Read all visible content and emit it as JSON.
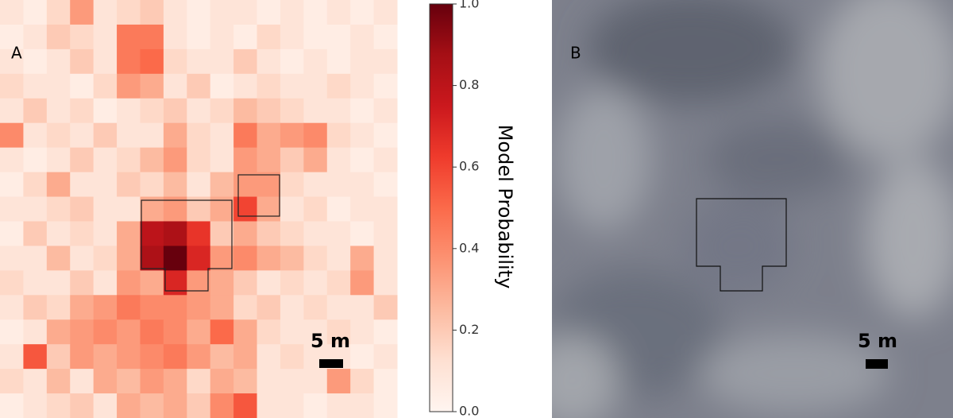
{
  "chart_data": {
    "type": "heatmap",
    "values": [
      [
        0.1,
        0.05,
        0.15,
        0.35,
        0.1,
        0.15,
        0.2,
        0.1,
        0.05,
        0.1,
        0.1,
        0.05,
        0.1,
        0.05,
        0.1,
        0.05,
        0.1
      ],
      [
        0.05,
        0.1,
        0.2,
        0.15,
        0.1,
        0.45,
        0.45,
        0.1,
        0.05,
        0.1,
        0.05,
        0.15,
        0.1,
        0.05,
        0.05,
        0.1,
        0.05
      ],
      [
        0.1,
        0.05,
        0.1,
        0.2,
        0.1,
        0.45,
        0.5,
        0.15,
        0.1,
        0.1,
        0.2,
        0.1,
        0.05,
        0.1,
        0.05,
        0.1,
        0.1
      ],
      [
        0.15,
        0.1,
        0.1,
        0.05,
        0.15,
        0.35,
        0.3,
        0.1,
        0.2,
        0.05,
        0.1,
        0.15,
        0.1,
        0.1,
        0.15,
        0.1,
        0.05
      ],
      [
        0.1,
        0.2,
        0.1,
        0.15,
        0.05,
        0.1,
        0.15,
        0.2,
        0.1,
        0.15,
        0.25,
        0.2,
        0.15,
        0.1,
        0.1,
        0.05,
        0.1
      ],
      [
        0.4,
        0.1,
        0.15,
        0.1,
        0.2,
        0.1,
        0.1,
        0.3,
        0.15,
        0.1,
        0.45,
        0.3,
        0.35,
        0.4,
        0.15,
        0.1,
        0.05
      ],
      [
        0.1,
        0.05,
        0.1,
        0.2,
        0.1,
        0.15,
        0.25,
        0.35,
        0.15,
        0.1,
        0.35,
        0.3,
        0.2,
        0.3,
        0.1,
        0.05,
        0.1
      ],
      [
        0.05,
        0.15,
        0.3,
        0.1,
        0.1,
        0.2,
        0.15,
        0.25,
        0.1,
        0.25,
        0.35,
        0.35,
        0.15,
        0.1,
        0.1,
        0.1,
        0.05
      ],
      [
        0.1,
        0.1,
        0.15,
        0.2,
        0.1,
        0.1,
        0.3,
        0.35,
        0.2,
        0.3,
        0.6,
        0.3,
        0.1,
        0.15,
        0.05,
        0.1,
        0.1
      ],
      [
        0.05,
        0.2,
        0.1,
        0.15,
        0.1,
        0.3,
        0.8,
        0.85,
        0.65,
        0.2,
        0.3,
        0.2,
        0.15,
        0.1,
        0.1,
        0.05,
        0.1
      ],
      [
        0.1,
        0.1,
        0.25,
        0.1,
        0.15,
        0.3,
        0.85,
        1.0,
        0.7,
        0.35,
        0.4,
        0.3,
        0.25,
        0.15,
        0.1,
        0.3,
        0.1
      ],
      [
        0.15,
        0.1,
        0.1,
        0.2,
        0.1,
        0.35,
        0.3,
        0.7,
        0.35,
        0.3,
        0.2,
        0.1,
        0.15,
        0.1,
        0.15,
        0.35,
        0.1
      ],
      [
        0.1,
        0.2,
        0.15,
        0.3,
        0.35,
        0.45,
        0.4,
        0.4,
        0.35,
        0.3,
        0.15,
        0.2,
        0.1,
        0.15,
        0.1,
        0.1,
        0.2
      ],
      [
        0.05,
        0.1,
        0.3,
        0.35,
        0.4,
        0.35,
        0.45,
        0.4,
        0.3,
        0.5,
        0.3,
        0.15,
        0.1,
        0.1,
        0.15,
        0.1,
        0.05
      ],
      [
        0.1,
        0.55,
        0.2,
        0.35,
        0.3,
        0.35,
        0.4,
        0.45,
        0.35,
        0.25,
        0.3,
        0.1,
        0.15,
        0.1,
        0.1,
        0.05,
        0.1
      ],
      [
        0.15,
        0.1,
        0.25,
        0.1,
        0.3,
        0.25,
        0.35,
        0.3,
        0.15,
        0.3,
        0.25,
        0.1,
        0.1,
        0.1,
        0.35,
        0.15,
        0.05
      ],
      [
        0.05,
        0.1,
        0.15,
        0.2,
        0.1,
        0.3,
        0.25,
        0.3,
        0.2,
        0.4,
        0.55,
        0.1,
        0.1,
        0.05,
        0.1,
        0.1,
        0.05
      ]
    ],
    "colorscale": [
      "#fff5f0",
      "#fee0d2",
      "#fcbba1",
      "#fc9272",
      "#fb6a4a",
      "#ef3b2c",
      "#cb181d",
      "#a50f15",
      "#67000d"
    ],
    "zlim": [
      0,
      1
    ],
    "zticks": [
      {
        "value": 0,
        "label": "0.0"
      },
      {
        "value": 0.2,
        "label": "0.2"
      },
      {
        "value": 0.4,
        "label": "0.4"
      },
      {
        "value": 0.6,
        "label": "0.6"
      },
      {
        "value": 0.8,
        "label": "0.8"
      },
      {
        "value": 1,
        "label": "1.0"
      }
    ],
    "colorbar_label": "Model Probability",
    "panel_label": "A",
    "scale_label": "5 m"
  },
  "photo": {
    "panel_label": "B",
    "scale_label": "5 m"
  }
}
